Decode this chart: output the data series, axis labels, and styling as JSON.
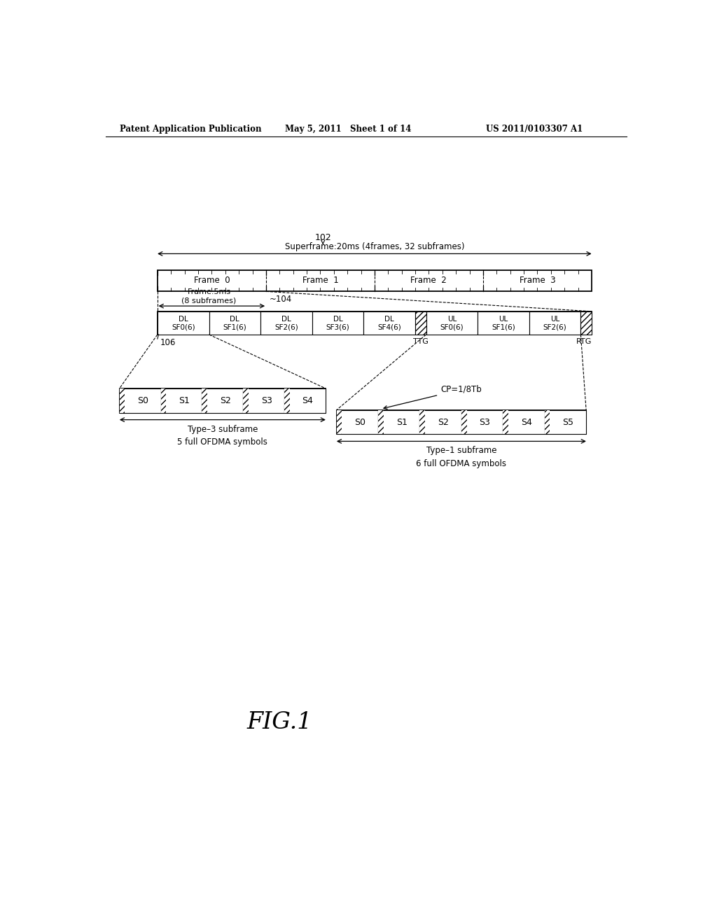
{
  "bg_color": "#ffffff",
  "header_left": "Patent Application Publication",
  "header_mid": "May 5, 2011   Sheet 1 of 14",
  "header_right": "US 2011/0103307 A1",
  "fig_label": "FIG.1",
  "superframe_label": "102",
  "superframe_text": "Superframe:20ms (4frames, 32 subframes)",
  "frame_label": "104",
  "frame_text": "Frame:5ms\n(8 subframes)",
  "frame_names": [
    "Frame 0",
    "Frame 1",
    "Frame 2",
    "Frame 3"
  ],
  "subframe_dl": [
    "DL\nSF0(6)",
    "DL\nSF1(6)",
    "DL\nSF2(6)",
    "DL\nSF3(6)",
    "DL\nSF4(6)"
  ],
  "subframe_ul": [
    "UL\nSF0(6)",
    "UL\nSF1(6)",
    "UL\nSF2(6)"
  ],
  "ttg_label": "TTG",
  "rtg_label": "RTG",
  "frame_row_label": "106",
  "type3_symbols": [
    "S0",
    "S1",
    "S2",
    "S3",
    "S4"
  ],
  "type3_label1": "Type–3 subframe",
  "type3_label2": "5 full OFDMA symbols",
  "type1_symbols": [
    "S0",
    "S1",
    "S2",
    "S3",
    "S4",
    "S5"
  ],
  "type1_label1": "Type–1 subframe",
  "type1_label2": "6 full OFDMA symbols",
  "cp_label": "CP=1/8Tb"
}
